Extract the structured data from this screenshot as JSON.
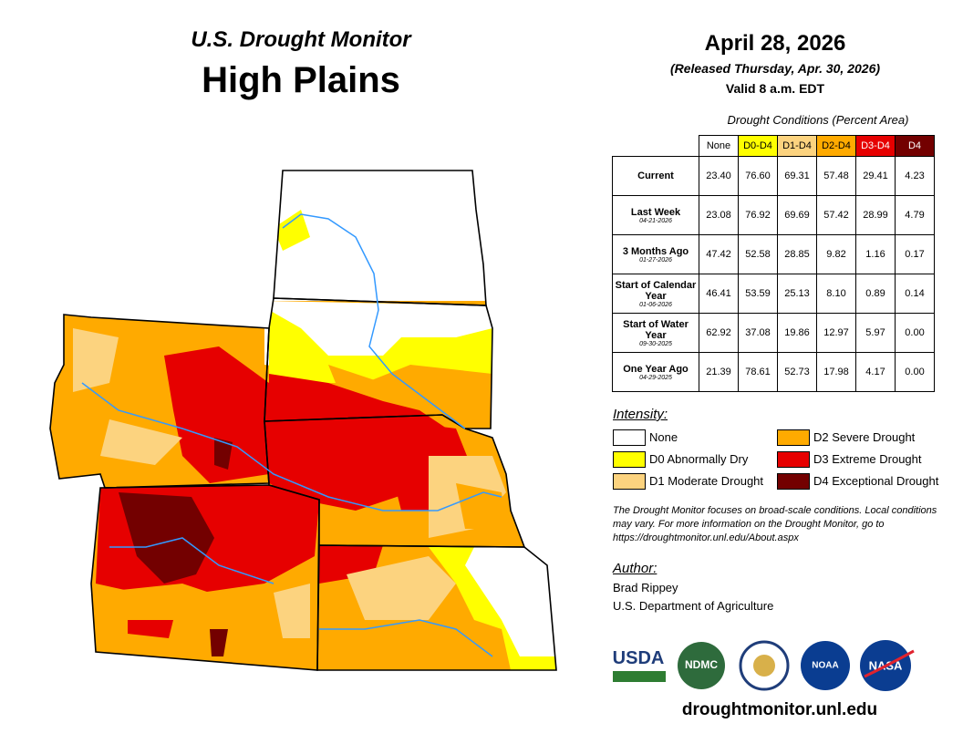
{
  "header": {
    "title": "U.S. Drought Monitor",
    "region": "High Plains",
    "date": "April 28, 2026",
    "released": "(Released Thursday, Apr. 30, 2026)",
    "valid": "Valid 8 a.m. EDT"
  },
  "table": {
    "caption": "Drought Conditions (Percent Area)",
    "columns": [
      {
        "label": "None",
        "color": "#ffffff"
      },
      {
        "label": "D0-D4",
        "color": "#ffff00"
      },
      {
        "label": "D1-D4",
        "color": "#fcd37f"
      },
      {
        "label": "D2-D4",
        "color": "#ffaa00"
      },
      {
        "label": "D3-D4",
        "color": "#e60000"
      },
      {
        "label": "D4",
        "color": "#730000"
      }
    ],
    "rows": [
      {
        "label": "Current",
        "values": [
          "23.40",
          "76.60",
          "69.31",
          "57.48",
          "29.41",
          "4.23"
        ]
      },
      {
        "label": "Last Week",
        "date": "04-21-2026",
        "values": [
          "23.08",
          "76.92",
          "69.69",
          "57.42",
          "28.99",
          "4.79"
        ]
      },
      {
        "label": "3 Months Ago",
        "date": "01-27-2026",
        "values": [
          "47.42",
          "52.58",
          "28.85",
          "9.82",
          "1.16",
          "0.17"
        ]
      },
      {
        "label": "Start of Calendar Year",
        "date": "01-06-2026",
        "values": [
          "46.41",
          "53.59",
          "25.13",
          "8.10",
          "0.89",
          "0.14"
        ]
      },
      {
        "label": "Start of Water Year",
        "date": "09-30-2025",
        "values": [
          "62.92",
          "37.08",
          "19.86",
          "12.97",
          "5.97",
          "0.00"
        ]
      },
      {
        "label": "One Year Ago",
        "date": "04-29-2025",
        "values": [
          "21.39",
          "78.61",
          "52.73",
          "17.98",
          "4.17",
          "0.00"
        ]
      }
    ]
  },
  "legend": {
    "title": "Intensity:",
    "items": [
      {
        "label": "None",
        "color": "#ffffff"
      },
      {
        "label": "D0 Abnormally Dry",
        "color": "#ffff00"
      },
      {
        "label": "D1 Moderate Drought",
        "color": "#fcd37f"
      },
      {
        "label": "D2 Severe Drought",
        "color": "#ffaa00"
      },
      {
        "label": "D3 Extreme Drought",
        "color": "#e60000"
      },
      {
        "label": "D4 Exceptional Drought",
        "color": "#730000"
      }
    ]
  },
  "note": "The Drought Monitor focuses on broad-scale conditions. Local conditions may vary. For more information on the Drought Monitor, go to https://droughtmonitor.unl.edu/About.aspx",
  "author": {
    "heading": "Author:",
    "lines": [
      "Brad Rippey",
      "U.S. Department of Agriculture"
    ]
  },
  "logos": [
    "USDA",
    "NDMC",
    "NOAA",
    "NASA"
  ],
  "footer": "droughtmonitor.unl.edu"
}
